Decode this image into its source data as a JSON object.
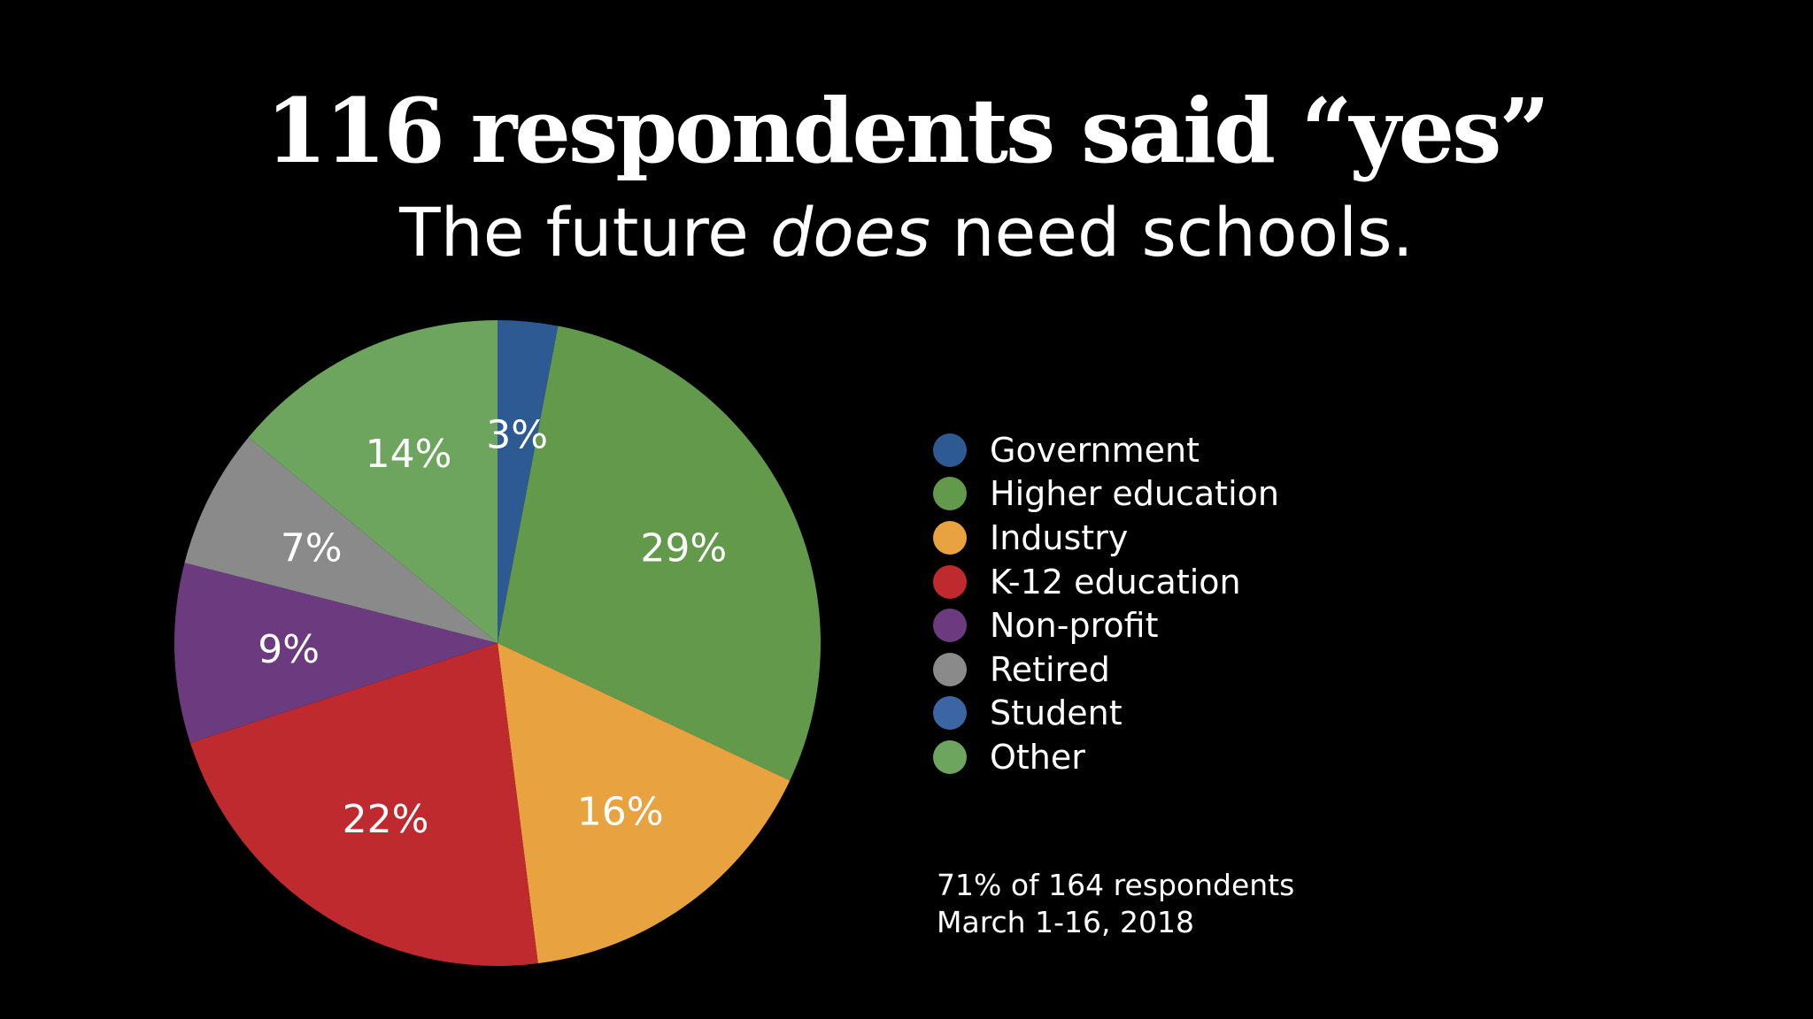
{
  "title": "116 respondents said “yes”",
  "subtitle": {
    "before": "The future ",
    "emphasis": "does",
    "after": " need schools."
  },
  "chart_data": {
    "type": "pie",
    "categories": [
      "Government",
      "Higher education",
      "Industry",
      "K-12 education",
      "Non-profit",
      "Retired",
      "Student",
      "Other"
    ],
    "slices": [
      {
        "label": "Government",
        "value": 3,
        "data_label": "3%",
        "color": "#2e5a94"
      },
      {
        "label": "Higher education",
        "value": 29,
        "data_label": "29%",
        "color": "#62994b"
      },
      {
        "label": "Industry",
        "value": 16,
        "data_label": "16%",
        "color": "#e8a23f"
      },
      {
        "label": "K-12 education",
        "value": 22,
        "data_label": "22%",
        "color": "#bf2a2f"
      },
      {
        "label": "Non-profit",
        "value": 9,
        "data_label": "9%",
        "color": "#6c3a7f"
      },
      {
        "label": "Retired",
        "value": 7,
        "data_label": "7%",
        "color": "#8a8a8a"
      },
      {
        "label": "Other",
        "value": 14,
        "data_label": "14%",
        "color": "#6da45e"
      }
    ],
    "legend": [
      {
        "label": "Government",
        "color": "#2e5a94"
      },
      {
        "label": "Higher education",
        "color": "#62994b"
      },
      {
        "label": "Industry",
        "color": "#e8a23f"
      },
      {
        "label": "K-12 education",
        "color": "#bf2a2f"
      },
      {
        "label": "Non-profit",
        "color": "#6c3a7f"
      },
      {
        "label": "Retired",
        "color": "#8a8a8a"
      },
      {
        "label": "Student",
        "color": "#3b65a3"
      },
      {
        "label": "Other",
        "color": "#6da45e"
      }
    ],
    "legend_position": "right"
  },
  "footnote": {
    "line1": "71% of 164 respondents",
    "line2": "March 1-16, 2018"
  }
}
